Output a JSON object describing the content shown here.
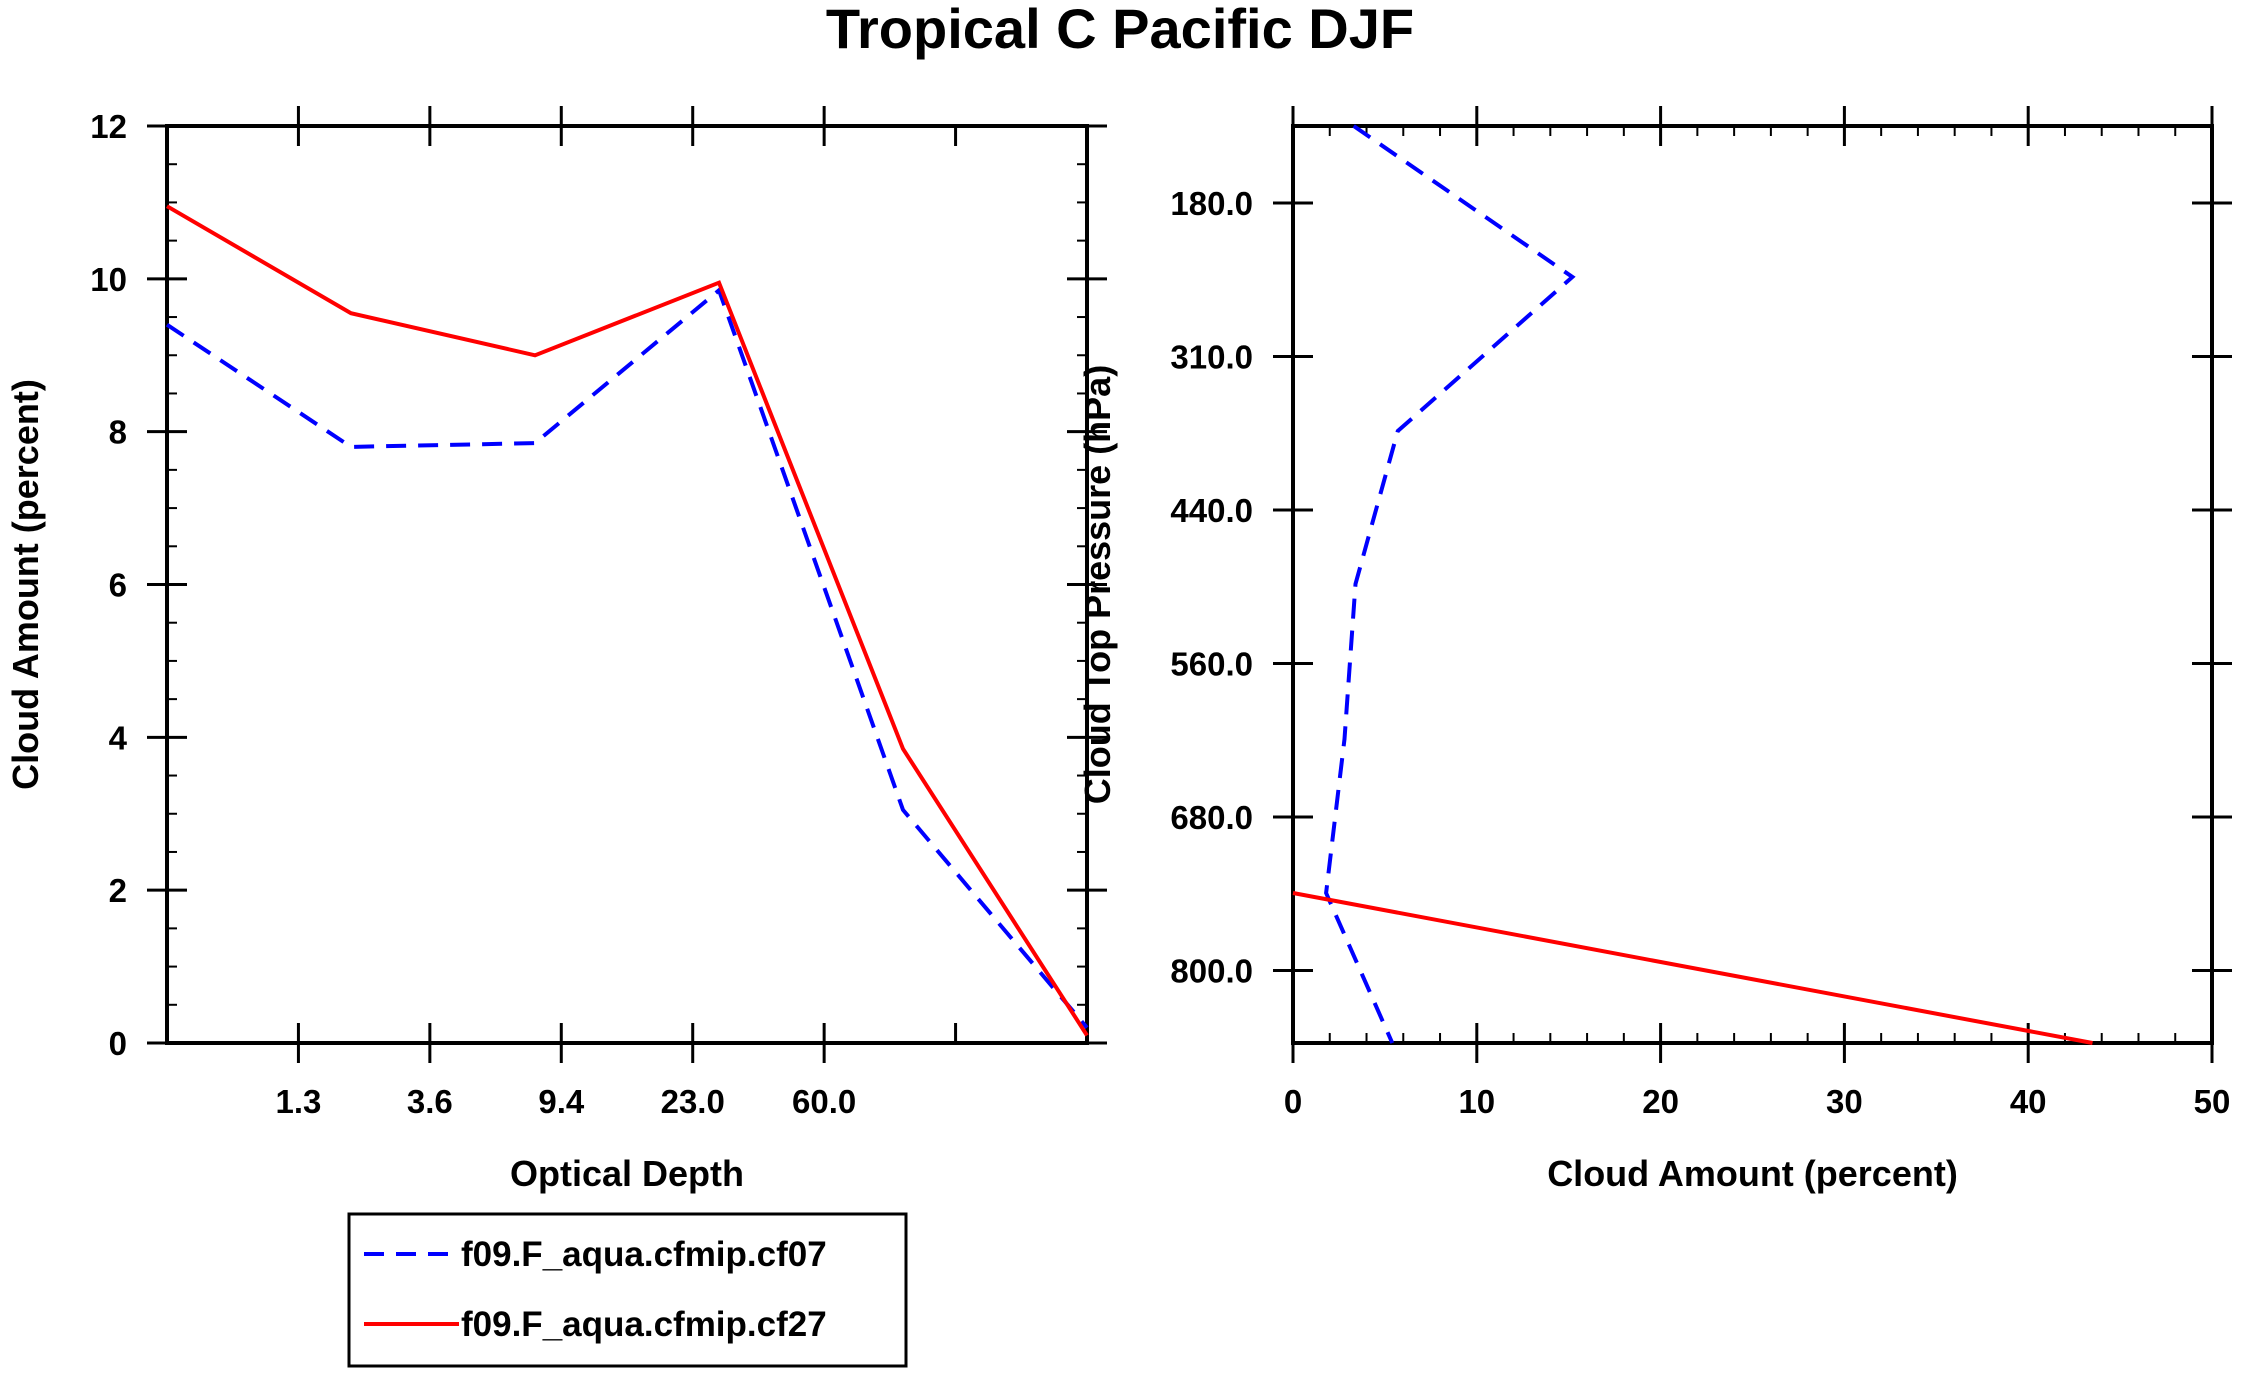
{
  "title": "Tropical C Pacific DJF",
  "legend": {
    "items": [
      {
        "label": "f09.F_aqua.cfmip.cf07",
        "color": "#0000ff",
        "dash": true
      },
      {
        "label": "f09.F_aqua.cfmip.cf27",
        "color": "#ff0000",
        "dash": false
      }
    ]
  },
  "chart_data": [
    {
      "type": "line",
      "xlabel": "Optical Depth",
      "ylabel": "Cloud Amount (percent)",
      "x_tick_labels": [
        "1.3",
        "3.6",
        "9.4",
        "23.0",
        "60.0"
      ],
      "ylim": [
        0,
        12
      ],
      "y_ticks": [
        0,
        2,
        4,
        6,
        8,
        10,
        12
      ],
      "x_bins": 7,
      "series": [
        {
          "name": "f09.F_aqua.cfmip.cf07",
          "color": "#0000ff",
          "dash": true,
          "values": [
            9.4,
            7.8,
            7.85,
            9.85,
            3.05,
            0.2
          ]
        },
        {
          "name": "f09.F_aqua.cfmip.cf27",
          "color": "#ff0000",
          "dash": false,
          "values": [
            10.95,
            9.55,
            9.0,
            9.95,
            3.85,
            0.1
          ]
        }
      ]
    },
    {
      "type": "line",
      "xlabel": "Cloud Amount (percent)",
      "ylabel": "Cloud Top Pressure (hPa)",
      "xlim": [
        0,
        50
      ],
      "x_ticks": [
        0,
        10,
        20,
        30,
        40,
        50
      ],
      "y_tick_labels": [
        "180.0",
        "310.0",
        "440.0",
        "560.0",
        "680.0",
        "800.0"
      ],
      "y_bins": 7,
      "series": [
        {
          "name": "f09.F_aqua.cfmip.cf07",
          "color": "#0000ff",
          "dash": true,
          "values": [
            3.3,
            15.2,
            5.7,
            3.4,
            2.8,
            1.8,
            5.4
          ]
        },
        {
          "name": "f09.F_aqua.cfmip.cf27",
          "color": "#ff0000",
          "dash": false,
          "values": [
            0,
            43.5
          ]
        }
      ]
    }
  ]
}
